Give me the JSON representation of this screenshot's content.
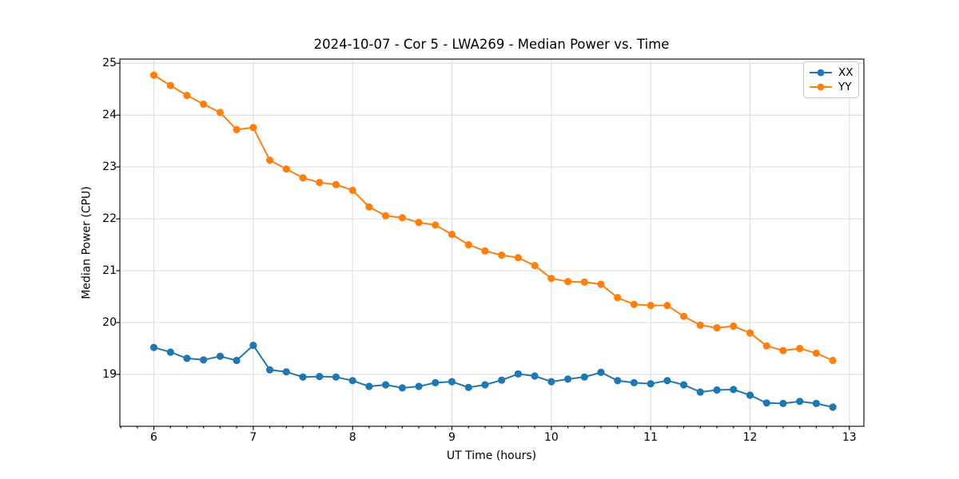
{
  "chart_data": {
    "type": "line",
    "title": "2024-10-07 - Cor 5 - LWA269 - Median Power vs. Time",
    "xlabel": "UT Time (hours)",
    "ylabel": "Median Power (CPU)",
    "xlim": [
      5.658,
      13.146
    ],
    "ylim": [
      18.0,
      25.08
    ],
    "xticks": [
      6,
      7,
      8,
      9,
      10,
      11,
      12,
      13
    ],
    "yticks": [
      19,
      20,
      21,
      22,
      23,
      24,
      25
    ],
    "x_minor_per_unit": 6,
    "grid": true,
    "grid_color": "#dcdcdc",
    "legend_position": "upper right",
    "x": [
      6.0,
      6.167,
      6.333,
      6.5,
      6.667,
      6.833,
      7.0,
      7.167,
      7.333,
      7.5,
      7.667,
      7.833,
      8.0,
      8.167,
      8.333,
      8.5,
      8.667,
      8.833,
      9.0,
      9.167,
      9.333,
      9.5,
      9.667,
      9.833,
      10.0,
      10.167,
      10.333,
      10.5,
      10.667,
      10.833,
      11.0,
      11.167,
      11.333,
      11.5,
      11.667,
      11.833,
      12.0,
      12.167,
      12.333,
      12.5,
      12.667,
      12.833
    ],
    "series": [
      {
        "name": "XX",
        "color": "#1f77b4",
        "values": [
          19.52,
          19.43,
          19.31,
          19.28,
          19.35,
          19.27,
          19.56,
          19.09,
          19.05,
          18.95,
          18.96,
          18.95,
          18.88,
          18.77,
          18.8,
          18.74,
          18.77,
          18.84,
          18.86,
          18.75,
          18.8,
          18.89,
          19.01,
          18.97,
          18.86,
          18.91,
          18.95,
          19.04,
          18.88,
          18.84,
          18.82,
          18.88,
          18.8,
          18.66,
          18.7,
          18.71,
          18.6,
          18.45,
          18.44,
          18.48,
          18.44,
          18.37
        ]
      },
      {
        "name": "YY",
        "color": "#ff7f0e",
        "values": [
          24.77,
          24.57,
          24.38,
          24.21,
          24.05,
          23.72,
          23.76,
          23.13,
          22.96,
          22.79,
          22.7,
          22.66,
          22.55,
          22.23,
          22.06,
          22.02,
          21.93,
          21.88,
          21.7,
          21.5,
          21.38,
          21.3,
          21.25,
          21.1,
          20.85,
          20.79,
          20.78,
          20.74,
          20.48,
          20.35,
          20.33,
          20.33,
          20.12,
          19.95,
          19.9,
          19.93,
          19.8,
          19.55,
          19.46,
          19.5,
          19.41,
          19.27
        ]
      }
    ]
  }
}
